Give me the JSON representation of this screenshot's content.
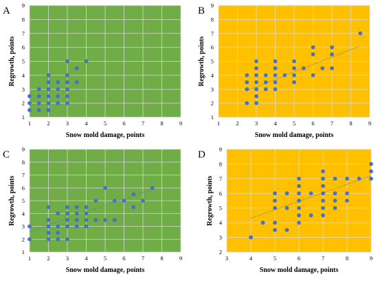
{
  "colors": {
    "green_plot": "#70AD47",
    "yellow_plot": "#FFC000",
    "marker": "#4472C4",
    "grid": "#D9D9D9",
    "trend": "#5B7FA8"
  },
  "chart_data": [
    {
      "panel": "A",
      "type": "scatter",
      "background": "green",
      "xlabel": "Snow mold damage, points",
      "ylabel": "Regrowth, points",
      "xlim": [
        1,
        9
      ],
      "ylim": [
        1,
        9
      ],
      "xticks": [
        1,
        2,
        3,
        4,
        5,
        6,
        7,
        8,
        9
      ],
      "yticks": [
        1,
        2,
        3,
        4,
        5,
        6,
        7,
        8,
        9
      ],
      "grid": true,
      "trendline": null,
      "points": [
        [
          1,
          1.5
        ],
        [
          1,
          2
        ],
        [
          1,
          2.5
        ],
        [
          1.5,
          1.5
        ],
        [
          1.5,
          2
        ],
        [
          1.5,
          2.5
        ],
        [
          1.5,
          3
        ],
        [
          2,
          1.5
        ],
        [
          2,
          2
        ],
        [
          2,
          2.5
        ],
        [
          2,
          3
        ],
        [
          2,
          3.5
        ],
        [
          2,
          4
        ],
        [
          2.5,
          2
        ],
        [
          2.5,
          2.5
        ],
        [
          2.5,
          3
        ],
        [
          2.5,
          3.5
        ],
        [
          3,
          2
        ],
        [
          3,
          2.5
        ],
        [
          3,
          3
        ],
        [
          3,
          3.5
        ],
        [
          3,
          4
        ],
        [
          3,
          5
        ],
        [
          3.5,
          3.5
        ],
        [
          3.5,
          4.5
        ],
        [
          4,
          5
        ]
      ]
    },
    {
      "panel": "B",
      "type": "scatter",
      "background": "yellow",
      "xlabel": "Snow mold damage, points",
      "ylabel": "Regrowth, points",
      "xlim": [
        1,
        9
      ],
      "ylim": [
        1,
        9
      ],
      "xticks": [
        1,
        2,
        3,
        4,
        5,
        6,
        7,
        8,
        9
      ],
      "yticks": [
        1,
        2,
        3,
        4,
        5,
        6,
        7,
        8,
        9
      ],
      "grid": true,
      "trendline": {
        "x": [
          2.5,
          8.5
        ],
        "y": [
          2.9,
          6.1
        ]
      },
      "points": [
        [
          2.5,
          2
        ],
        [
          2.5,
          3
        ],
        [
          2.5,
          3.5
        ],
        [
          2.5,
          4
        ],
        [
          3,
          2
        ],
        [
          3,
          2.5
        ],
        [
          3,
          3
        ],
        [
          3,
          3.5
        ],
        [
          3,
          4
        ],
        [
          3,
          4.5
        ],
        [
          3,
          5
        ],
        [
          3.5,
          3
        ],
        [
          3.5,
          3.5
        ],
        [
          3.5,
          4
        ],
        [
          4,
          3
        ],
        [
          4,
          3.5
        ],
        [
          4,
          4
        ],
        [
          4,
          4.5
        ],
        [
          4,
          5
        ],
        [
          4.5,
          4
        ],
        [
          5,
          3.5
        ],
        [
          5,
          4
        ],
        [
          5,
          4.5
        ],
        [
          5,
          5
        ],
        [
          5.5,
          4.5
        ],
        [
          6,
          4
        ],
        [
          6,
          5.5
        ],
        [
          6,
          6
        ],
        [
          6.5,
          4.5
        ],
        [
          7,
          4.5
        ],
        [
          7,
          5.5
        ],
        [
          7,
          6
        ],
        [
          8.5,
          7
        ]
      ]
    },
    {
      "panel": "C",
      "type": "scatter",
      "background": "green",
      "xlabel": "Snow mold damage, points",
      "ylabel": "Regrowth, points",
      "xlim": [
        1,
        9
      ],
      "ylim": [
        1,
        9
      ],
      "xticks": [
        1,
        2,
        3,
        4,
        5,
        6,
        7,
        8,
        9
      ],
      "yticks": [
        1,
        2,
        3,
        4,
        5,
        6,
        7,
        8,
        9
      ],
      "grid": true,
      "trendline": {
        "x": [
          1,
          7.5
        ],
        "y": [
          2.6,
          5.9
        ]
      },
      "points": [
        [
          1,
          2
        ],
        [
          1,
          3
        ],
        [
          2,
          2
        ],
        [
          2,
          2.5
        ],
        [
          2,
          3
        ],
        [
          2,
          3.5
        ],
        [
          2,
          4.5
        ],
        [
          2.5,
          2
        ],
        [
          2.5,
          2.5
        ],
        [
          2.5,
          3
        ],
        [
          2.5,
          4
        ],
        [
          3,
          2
        ],
        [
          3,
          3
        ],
        [
          3,
          3.5
        ],
        [
          3,
          4
        ],
        [
          3,
          4.5
        ],
        [
          3.5,
          3
        ],
        [
          3.5,
          3.5
        ],
        [
          3.5,
          4
        ],
        [
          3.5,
          4.5
        ],
        [
          4,
          3
        ],
        [
          4,
          3.5
        ],
        [
          4,
          4
        ],
        [
          4,
          4.5
        ],
        [
          4.5,
          3.5
        ],
        [
          4.5,
          5
        ],
        [
          5,
          3.5
        ],
        [
          5,
          6
        ],
        [
          5.5,
          3.5
        ],
        [
          5.5,
          5
        ],
        [
          6,
          5
        ],
        [
          6.5,
          4.5
        ],
        [
          6.5,
          5.5
        ],
        [
          7,
          5
        ],
        [
          7.5,
          6
        ]
      ]
    },
    {
      "panel": "D",
      "type": "scatter",
      "background": "yellow",
      "xlabel": "Snow mold damage, points",
      "ylabel": "Regrowth, points",
      "xlim": [
        3,
        9
      ],
      "ylim": [
        2,
        9
      ],
      "xticks": [
        3,
        4,
        5,
        6,
        7,
        8,
        9
      ],
      "yticks": [
        2,
        3,
        4,
        5,
        6,
        7,
        8,
        9
      ],
      "grid": true,
      "trendline": {
        "x": [
          4,
          9
        ],
        "y": [
          4.3,
          7.2
        ]
      },
      "points": [
        [
          4,
          3
        ],
        [
          4.5,
          4
        ],
        [
          5,
          3.5
        ],
        [
          5,
          4
        ],
        [
          5,
          5
        ],
        [
          5,
          5.5
        ],
        [
          5,
          6
        ],
        [
          5.5,
          3.5
        ],
        [
          5.5,
          5
        ],
        [
          5.5,
          6
        ],
        [
          6,
          4
        ],
        [
          6,
          4.5
        ],
        [
          6,
          5
        ],
        [
          6,
          5.5
        ],
        [
          6,
          6
        ],
        [
          6,
          6.5
        ],
        [
          6,
          7
        ],
        [
          6.5,
          4.5
        ],
        [
          6.5,
          6
        ],
        [
          7,
          4.5
        ],
        [
          7,
          5
        ],
        [
          7,
          5.5
        ],
        [
          7,
          6
        ],
        [
          7,
          6.5
        ],
        [
          7,
          7
        ],
        [
          7,
          7.5
        ],
        [
          7.5,
          5
        ],
        [
          7.5,
          5.5
        ],
        [
          7.5,
          6
        ],
        [
          7.5,
          7
        ],
        [
          8,
          5.5
        ],
        [
          8,
          6
        ],
        [
          8,
          7
        ],
        [
          8.5,
          7
        ],
        [
          9,
          7
        ],
        [
          9,
          7.5
        ],
        [
          9,
          8
        ]
      ]
    }
  ]
}
